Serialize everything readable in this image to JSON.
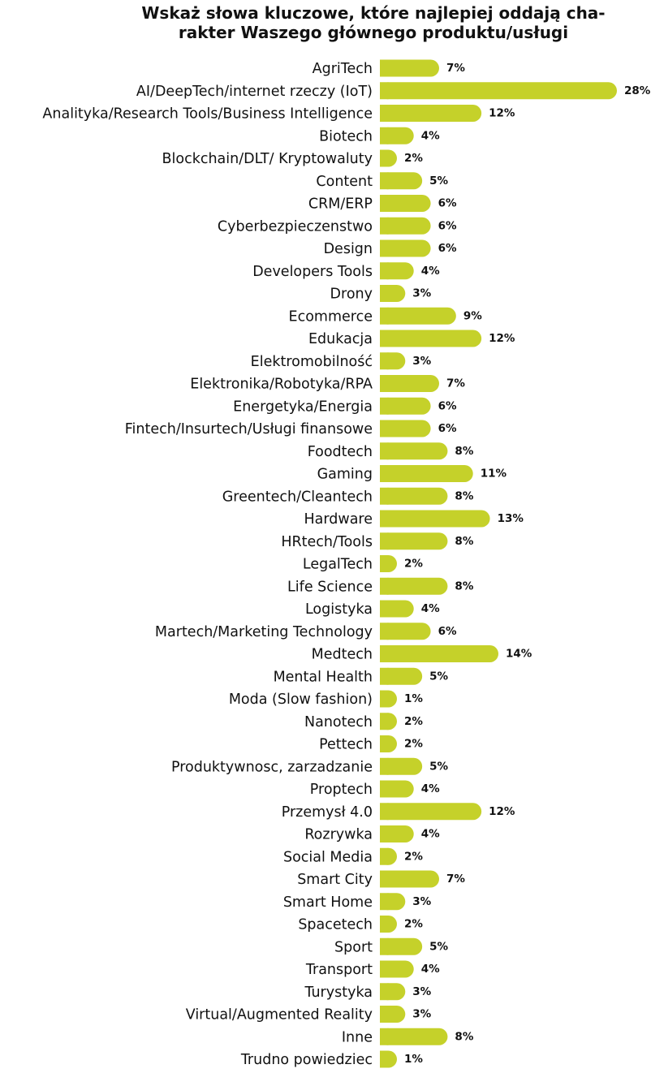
{
  "chart_data": {
    "type": "bar",
    "orientation": "horizontal",
    "title_lines": [
      "Wskaż słowa kluczowe, które najlepiej oddają cha-",
      "rakter Waszego głównego produktu/usługi"
    ],
    "bar_color": "#c5d12a",
    "categories": [
      "AgriTech",
      "AI/DeepTech/internet rzeczy (IoT)",
      "Analityka/Research Tools/Business Intelligence",
      "Biotech",
      "Blockchain/DLT/ Kryptowaluty",
      "Content",
      "CRM/ERP",
      "Cyberbezpieczenstwo",
      "Design",
      "Developers Tools",
      "Drony",
      "Ecommerce",
      "Edukacja",
      "Elektromobilność",
      "Elektronika/Robotyka/RPA",
      "Energetyka/Energia",
      "Fintech/Insurtech/Usługi finansowe",
      "Foodtech",
      "Gaming",
      "Greentech/Cleantech",
      "Hardware",
      "HRtech/Tools",
      "LegalTech",
      "Life Science",
      "Logistyka",
      "Martech/Marketing Technology",
      "Medtech",
      "Mental Health",
      "Moda (Slow fashion)",
      "Nanotech",
      "Pettech",
      "Produktywnosc, zarzadzanie",
      "Proptech",
      "Przemysł 4.0",
      "Rozrywka",
      "Social Media",
      "Smart City",
      "Smart Home",
      "Spacetech",
      "Sport",
      "Transport",
      "Turystyka",
      "Virtual/Augmented Reality",
      "Inne",
      "Trudno powiedziec"
    ],
    "values": [
      7,
      28,
      12,
      4,
      2,
      5,
      6,
      6,
      6,
      4,
      3,
      9,
      12,
      3,
      7,
      6,
      6,
      8,
      11,
      8,
      13,
      8,
      2,
      8,
      4,
      6,
      14,
      5,
      1,
      2,
      2,
      5,
      4,
      12,
      4,
      2,
      7,
      3,
      2,
      5,
      4,
      3,
      3,
      8,
      1
    ],
    "value_labels": [
      "7%",
      "28%",
      "12%",
      "4%",
      "2%",
      "5%",
      "6%",
      "6%",
      "6%",
      "4%",
      "3%",
      "9%",
      "12%",
      "3%",
      "7%",
      "6%",
      "6%",
      "8%",
      "11%",
      "8%",
      "13%",
      "8%",
      "2%",
      "8%",
      "4%",
      "6%",
      "14%",
      "5%",
      "1%",
      "2%",
      "2%",
      "5%",
      "4%",
      "12%",
      "4%",
      "2%",
      "7%",
      "3%",
      "2%",
      "5%",
      "4%",
      "3%",
      "3%",
      "8%",
      "1%"
    ],
    "unit": "%",
    "xlim": [
      0,
      28
    ],
    "grid": false,
    "legend": "none"
  }
}
